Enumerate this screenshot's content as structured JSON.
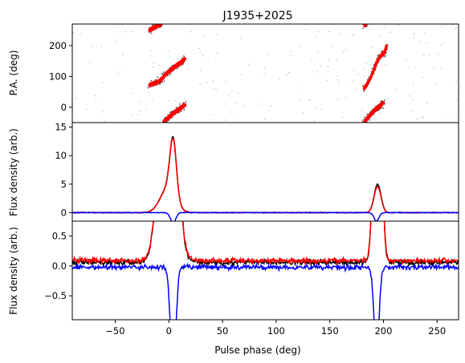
{
  "chart_data": {
    "type": "line",
    "title": "J1935+2025",
    "xlabel": "Pulse phase (deg)",
    "x_ticks": [
      -50,
      0,
      50,
      100,
      150,
      200,
      250
    ],
    "xlim": [
      -90,
      270
    ],
    "panels": [
      {
        "name": "pa",
        "ylabel": "P.A. (deg)",
        "ylim": [
          -50,
          270
        ],
        "y_ticks": [
          0,
          100,
          200
        ],
        "tick_labels": [
          "0",
          "100",
          "200"
        ],
        "colors": {
          "points": "#ff0000",
          "scatter": "#555555"
        },
        "segments": [
          [
            [
              -18,
              250
            ],
            [
              -15,
              256
            ],
            [
              -12,
              262
            ],
            [
              -9,
              267
            ],
            [
              -7,
              270
            ]
          ],
          [
            [
              -18,
              72
            ],
            [
              -14,
              77
            ],
            [
              -10,
              82
            ],
            [
              -6,
              93
            ],
            [
              -3,
              108
            ],
            [
              1,
              118
            ],
            [
              4,
              127
            ],
            [
              7,
              135
            ],
            [
              10,
              142
            ],
            [
              13,
              150
            ],
            [
              15,
              157
            ]
          ],
          [
            [
              -5,
              -50
            ],
            [
              -3,
              -42
            ],
            [
              0,
              -33
            ],
            [
              3,
              -23
            ],
            [
              6,
              -15
            ],
            [
              9,
              -8
            ],
            [
              12,
              0
            ],
            [
              15,
              8
            ]
          ],
          [
            [
              182,
              62
            ],
            [
              185,
              75
            ],
            [
              188,
              95
            ],
            [
              191,
              120
            ],
            [
              193,
              140
            ],
            [
              196,
              160
            ],
            [
              199,
              172
            ],
            [
              201,
              178
            ],
            [
              203,
              200
            ]
          ],
          [
            [
              182,
              -50
            ],
            [
              185,
              -35
            ],
            [
              188,
              -25
            ],
            [
              191,
              -12
            ],
            [
              194,
              -3
            ],
            [
              197,
              5
            ],
            [
              200,
              15
            ]
          ],
          [
            [
              182,
              268
            ],
            [
              184,
              270
            ]
          ]
        ]
      },
      {
        "name": "flux",
        "ylabel": "Flux density (arb.)",
        "ylim": [
          -1.5,
          15.8
        ],
        "y_ticks": [
          0,
          5,
          10,
          15
        ],
        "tick_labels": [
          "0",
          "5",
          "10",
          "15"
        ],
        "series": [
          {
            "color": "#000000",
            "components": [
              {
                "amp": 10.0,
                "mu": 4,
                "sigma": 3
              },
              {
                "amp": 4.3,
                "mu": -1,
                "sigma": 7
              },
              {
                "amp": 5.0,
                "mu": 194.5,
                "sigma": 3.2
              }
            ]
          },
          {
            "color": "#ff0000",
            "components": [
              {
                "amp": 9.8,
                "mu": 4,
                "sigma": 3
              },
              {
                "amp": 4.2,
                "mu": -1,
                "sigma": 7
              },
              {
                "amp": 4.6,
                "mu": 194.5,
                "sigma": 3.2
              }
            ]
          },
          {
            "color": "#0000ff",
            "components": [
              {
                "amp": -1.8,
                "mu": 4,
                "sigma": 2.5
              },
              {
                "amp": -1.5,
                "mu": 193.5,
                "sigma": 2.3
              }
            ]
          }
        ]
      },
      {
        "name": "zoom",
        "ylabel": "Flux density (arb.)",
        "ylim": [
          -0.9,
          0.75
        ],
        "y_ticks": [
          -0.5,
          0,
          0.5
        ],
        "tick_labels": [
          "−0.5",
          "0.0",
          "0.5"
        ],
        "series": [
          {
            "color": "#000000",
            "offset": 0.06
          },
          {
            "color": "#ff0000",
            "offset": 0.09
          },
          {
            "color": "#0000ff",
            "offset": -0.02
          }
        ]
      }
    ]
  }
}
